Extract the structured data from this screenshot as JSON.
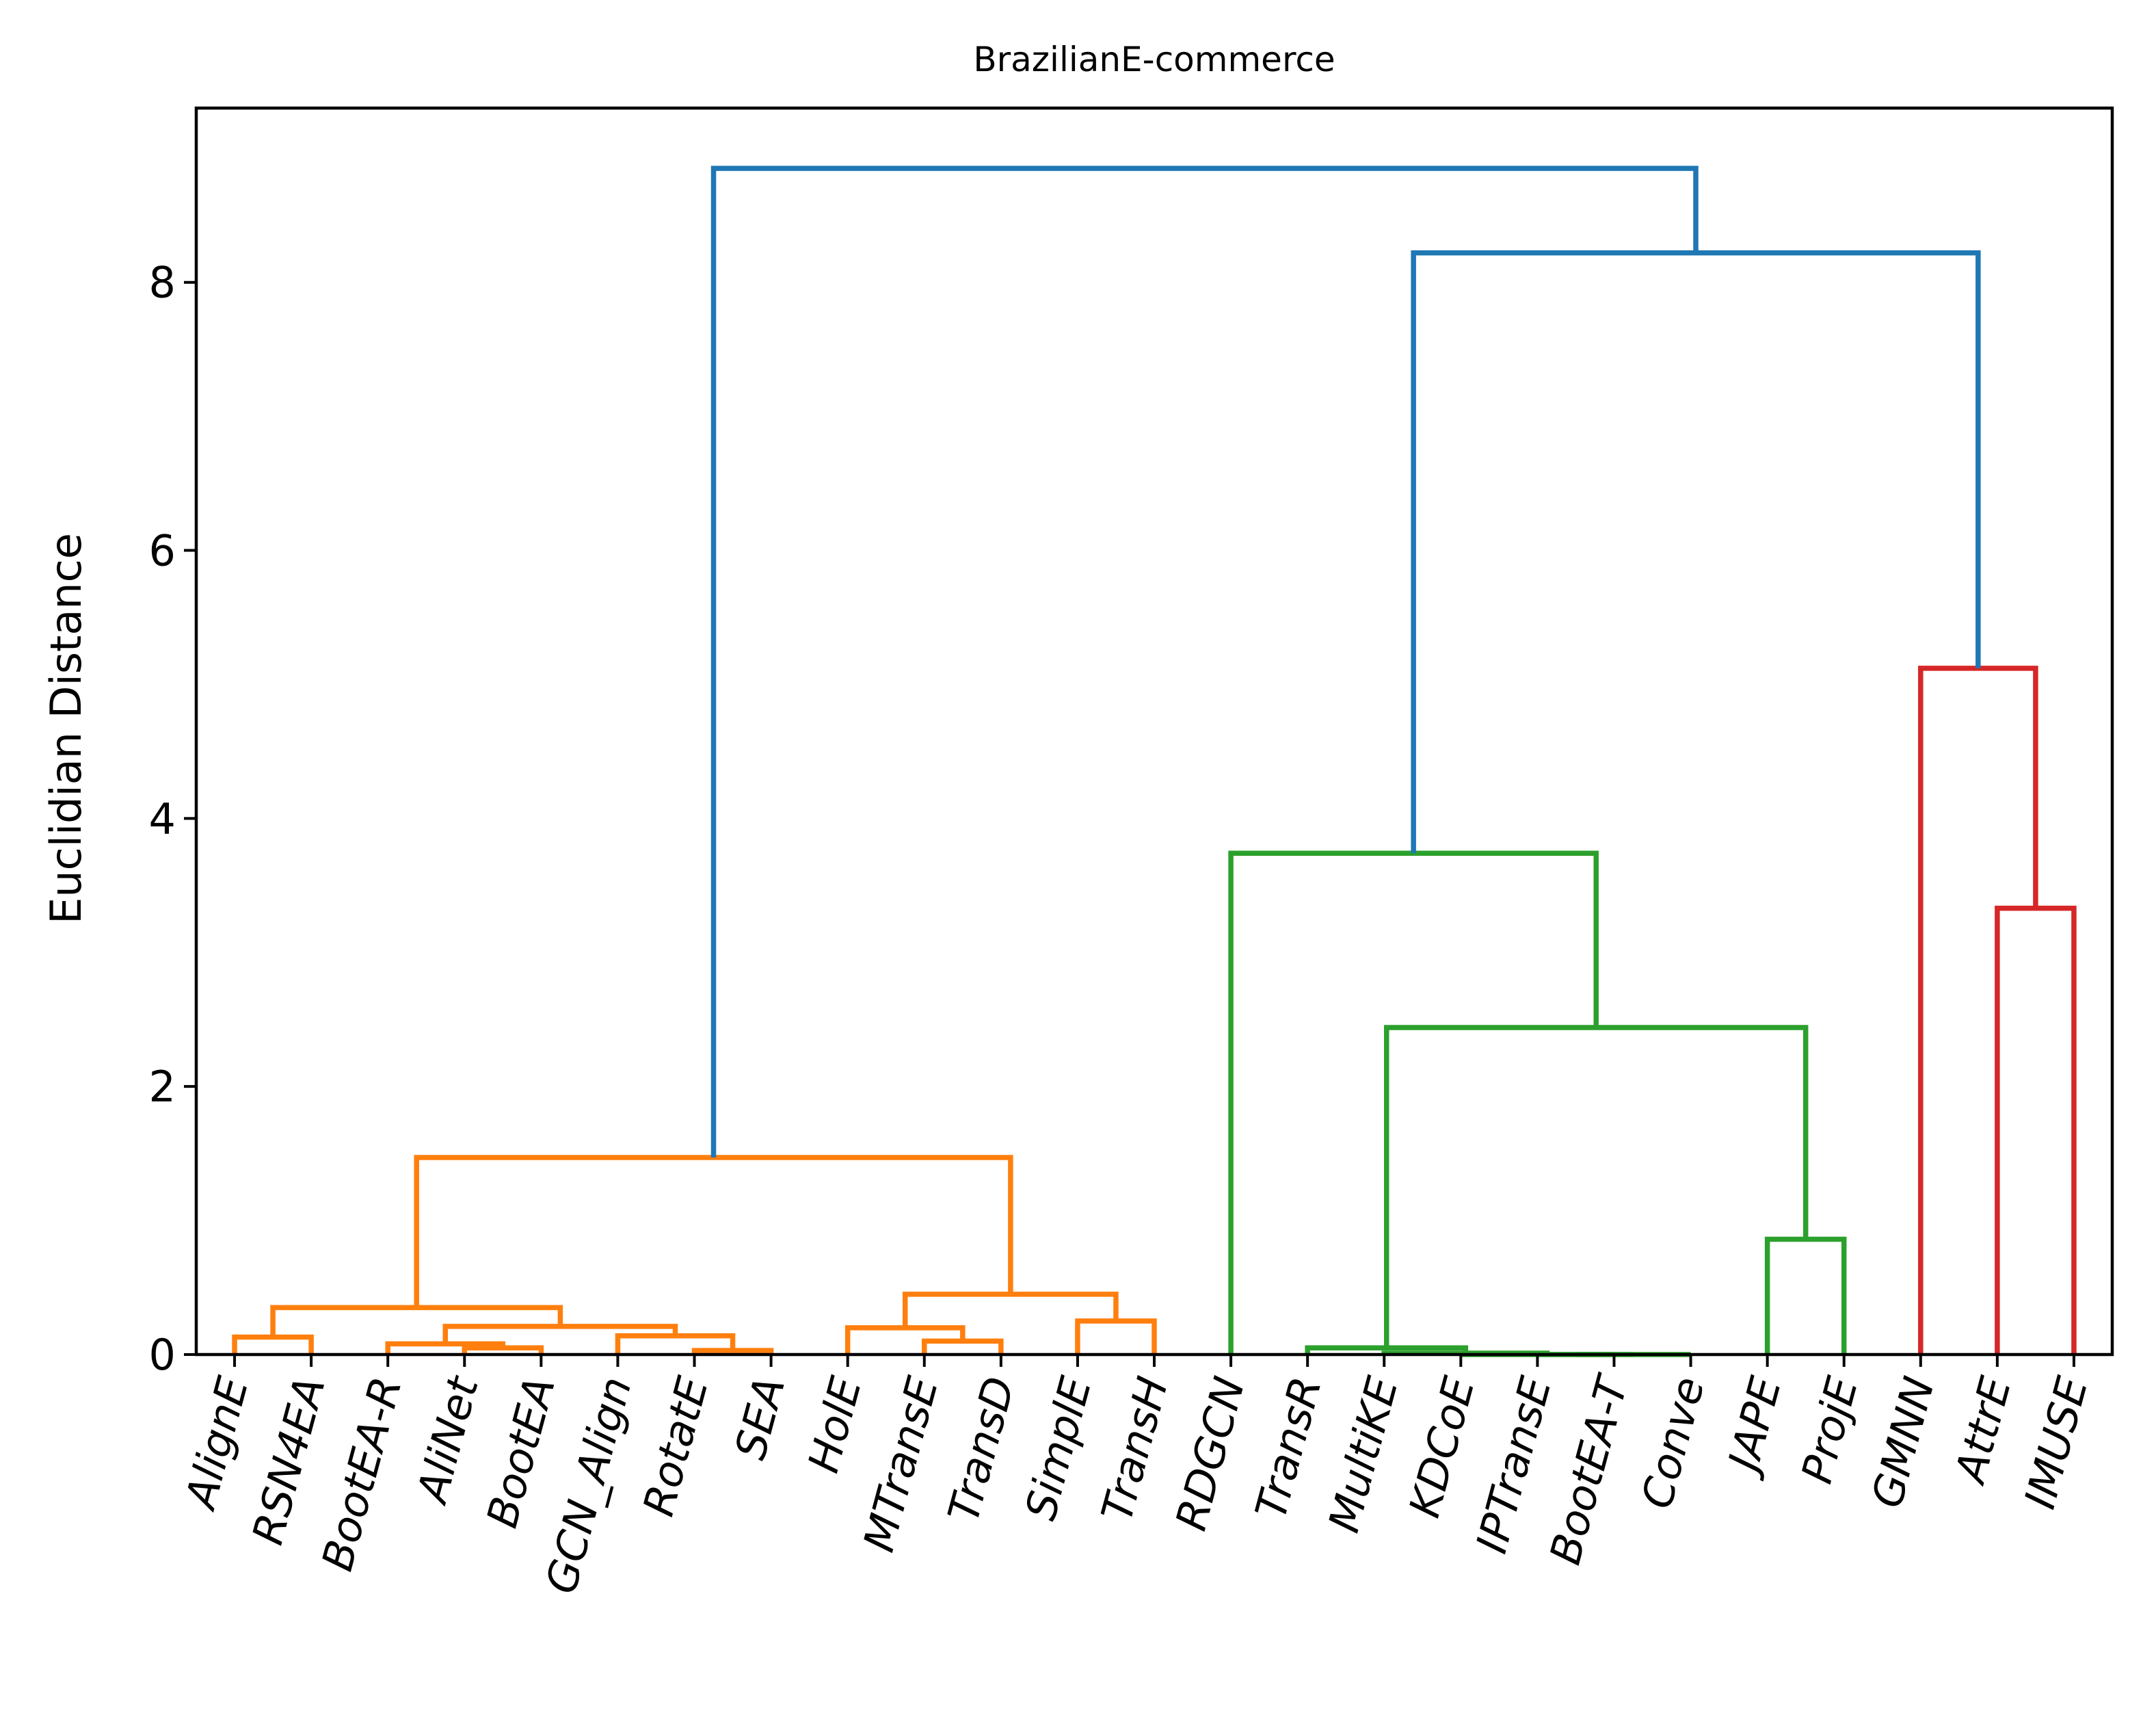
{
  "chart_data": {
    "type": "dendrogram",
    "title": "BrazilianE-commerce",
    "ylabel": "Euclidian Distance",
    "xlabel": "",
    "ylim": [
      0,
      9.3
    ],
    "yticks": [
      0,
      2,
      4,
      6,
      8
    ],
    "grid": false,
    "leaves": [
      "AlignE",
      "RSN4EA",
      "BootEA-R",
      "AliNet",
      "BootEA",
      "GCN_Align",
      "RotatE",
      "SEA",
      "HolE",
      "MTransE",
      "TransD",
      "SimplE",
      "TransH",
      "RDGCN",
      "TransR",
      "MultiKE",
      "KDCoE",
      "IPTransE",
      "BootEA-T",
      "Conve",
      "JAPE",
      "ProjE",
      "GMNN",
      "AttrE",
      "IMUSE"
    ],
    "colors": {
      "cluster_1": "#ff7f0e",
      "cluster_2": "#2ca02c",
      "cluster_3": "#d62728",
      "above_threshold": "#1f77b4"
    },
    "merges": [
      {
        "id": "m1",
        "left": "IPTransE",
        "right": "BootEA-T",
        "height": 0.0,
        "color": "cluster_2"
      },
      {
        "id": "m2",
        "left": "m1",
        "right": "Conve",
        "height": 0.0,
        "color": "cluster_2"
      },
      {
        "id": "m3",
        "left": "KDCoE",
        "right": "m2",
        "height": 0.0,
        "color": "cluster_2"
      },
      {
        "id": "m4",
        "left": "MultiKE",
        "right": "m3",
        "height": 0.01,
        "color": "cluster_2"
      },
      {
        "id": "m5",
        "left": "TransR",
        "right": "m4",
        "height": 0.05,
        "color": "cluster_2"
      },
      {
        "id": "m6",
        "left": "RotatE",
        "right": "SEA",
        "height": 0.03,
        "color": "cluster_1"
      },
      {
        "id": "m7",
        "left": "AliNet",
        "right": "BootEA",
        "height": 0.05,
        "color": "cluster_1"
      },
      {
        "id": "m8",
        "left": "BootEA-R",
        "right": "m7",
        "height": 0.08,
        "color": "cluster_1"
      },
      {
        "id": "m9",
        "left": "MTransE",
        "right": "TransD",
        "height": 0.1,
        "color": "cluster_1"
      },
      {
        "id": "m10",
        "left": "AlignE",
        "right": "RSN4EA",
        "height": 0.13,
        "color": "cluster_1"
      },
      {
        "id": "m11",
        "left": "GCN_Align",
        "right": "m6",
        "height": 0.14,
        "color": "cluster_1"
      },
      {
        "id": "m12",
        "left": "HolE",
        "right": "m9",
        "height": 0.2,
        "color": "cluster_1"
      },
      {
        "id": "m13",
        "left": "m8",
        "right": "m11",
        "height": 0.21,
        "color": "cluster_1"
      },
      {
        "id": "m14",
        "left": "SimplE",
        "right": "TransH",
        "height": 0.25,
        "color": "cluster_1"
      },
      {
        "id": "m15",
        "left": "m10",
        "right": "m13",
        "height": 0.35,
        "color": "cluster_1"
      },
      {
        "id": "m16",
        "left": "m12",
        "right": "m14",
        "height": 0.45,
        "color": "cluster_1"
      },
      {
        "id": "m17",
        "left": "JAPE",
        "right": "ProjE",
        "height": 0.86,
        "color": "cluster_2"
      },
      {
        "id": "m18",
        "left": "m15",
        "right": "m16",
        "height": 1.47,
        "color": "cluster_1"
      },
      {
        "id": "m19",
        "left": "m5",
        "right": "m17",
        "height": 2.44,
        "color": "cluster_2"
      },
      {
        "id": "m20",
        "left": "AttrE",
        "right": "IMUSE",
        "height": 3.33,
        "color": "cluster_3"
      },
      {
        "id": "m21",
        "left": "RDGCN",
        "right": "m19",
        "height": 3.74,
        "color": "cluster_2"
      },
      {
        "id": "m22",
        "left": "GMNN",
        "right": "m20",
        "height": 5.12,
        "color": "cluster_3"
      },
      {
        "id": "m23",
        "left": "m21",
        "right": "m22",
        "height": 8.22,
        "color": "above_threshold"
      },
      {
        "id": "m24",
        "left": "m18",
        "right": "m23",
        "height": 8.85,
        "color": "above_threshold"
      }
    ]
  }
}
